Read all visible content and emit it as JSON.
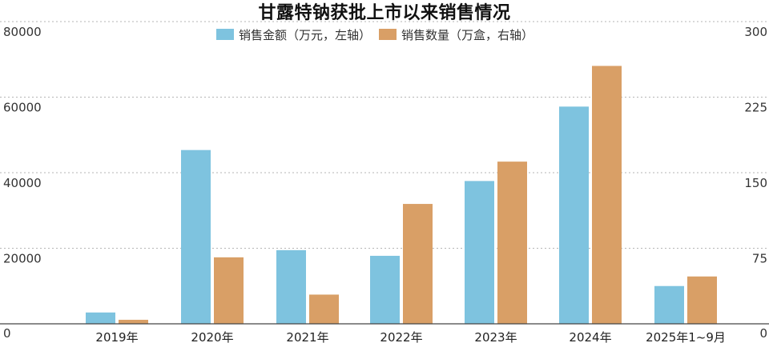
{
  "chart_data": {
    "type": "bar",
    "title": "甘露特钠获批上市以来销售情况",
    "categories": [
      "2019年",
      "2020年",
      "2021年",
      "2022年",
      "2023年",
      "2024年",
      "2025年1~9月"
    ],
    "series": [
      {
        "name": "销售金额（万元，左轴）",
        "axis": "left",
        "color": "#7ec3df",
        "values": [
          3000,
          46000,
          19500,
          18000,
          37800,
          57500,
          10000
        ]
      },
      {
        "name": "销售数量（万盒，右轴）",
        "axis": "right",
        "color": "#d99f66",
        "values": [
          4,
          66,
          29,
          119,
          161,
          256,
          47
        ]
      }
    ],
    "left_axis": {
      "min": 0,
      "max": 80000,
      "ticks": [
        "0",
        "20000",
        "40000",
        "60000",
        "80000"
      ]
    },
    "right_axis": {
      "min": 0,
      "max": 300,
      "ticks": [
        "0",
        "75",
        "150",
        "225",
        "300"
      ]
    },
    "grid": true,
    "legend_position": "top-center"
  }
}
